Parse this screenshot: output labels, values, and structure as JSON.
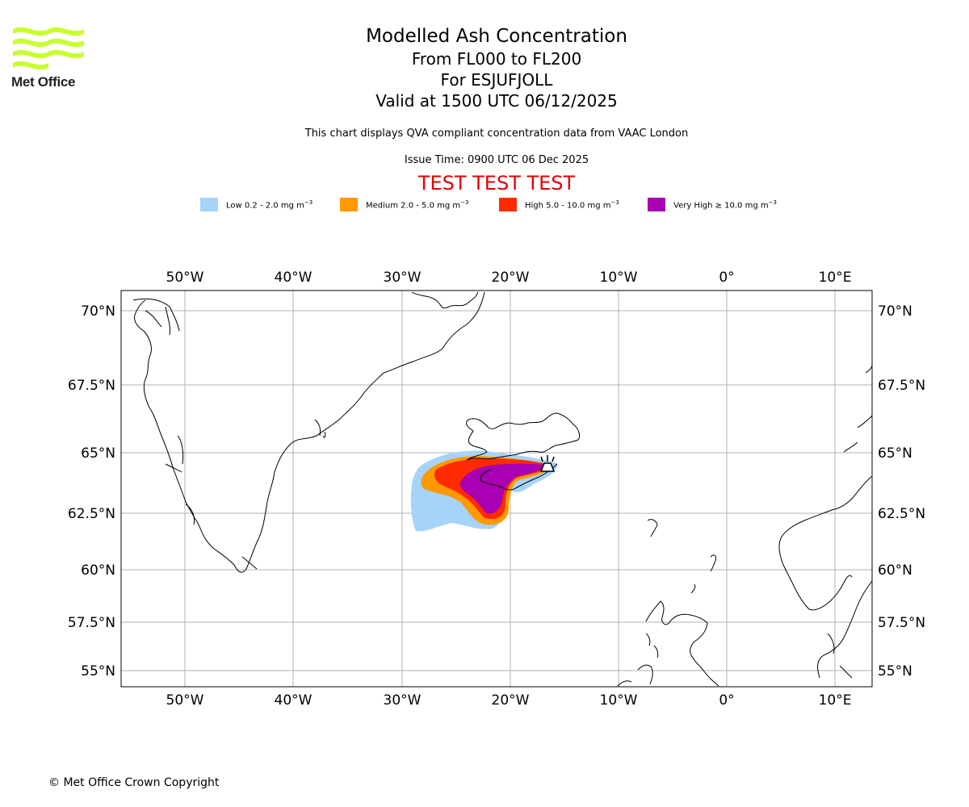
{
  "logo": {
    "name": "Met Office"
  },
  "title": {
    "main": "Modelled Ash Concentration",
    "levels": "From FL000 to FL200",
    "volcano": "For ESJUFJOLL",
    "valid": "Valid at 1500 UTC 06/12/2025"
  },
  "subtitle": "This chart displays QVA compliant concentration data from VAAC London",
  "issue_time": "Issue Time: 0900 UTC 06 Dec 2025",
  "test_banner": "TEST TEST TEST",
  "legend": [
    {
      "label": "Low 0.2 - 2.0 mg m",
      "exp": "−3",
      "color": "#a5d3fa"
    },
    {
      "label": "Medium 2.0 - 5.0 mg m",
      "exp": "−3",
      "color": "#ff9900"
    },
    {
      "label": "High 5.0 - 10.0 mg m",
      "exp": "−3",
      "color": "#ff2a00"
    },
    {
      "label": "Very High  ≥  10.0 mg m",
      "exp": "−3",
      "color": "#a800b2"
    }
  ],
  "map": {
    "lon_ticks": [
      "50°W",
      "40°W",
      "30°W",
      "20°W",
      "10°W",
      "0°",
      "10°E"
    ],
    "lat_ticks": [
      "70°N",
      "67.5°N",
      "65°N",
      "62.5°N",
      "60°N",
      "57.5°N",
      "55°N"
    ]
  },
  "footer": "© Met Office Crown Copyright"
}
